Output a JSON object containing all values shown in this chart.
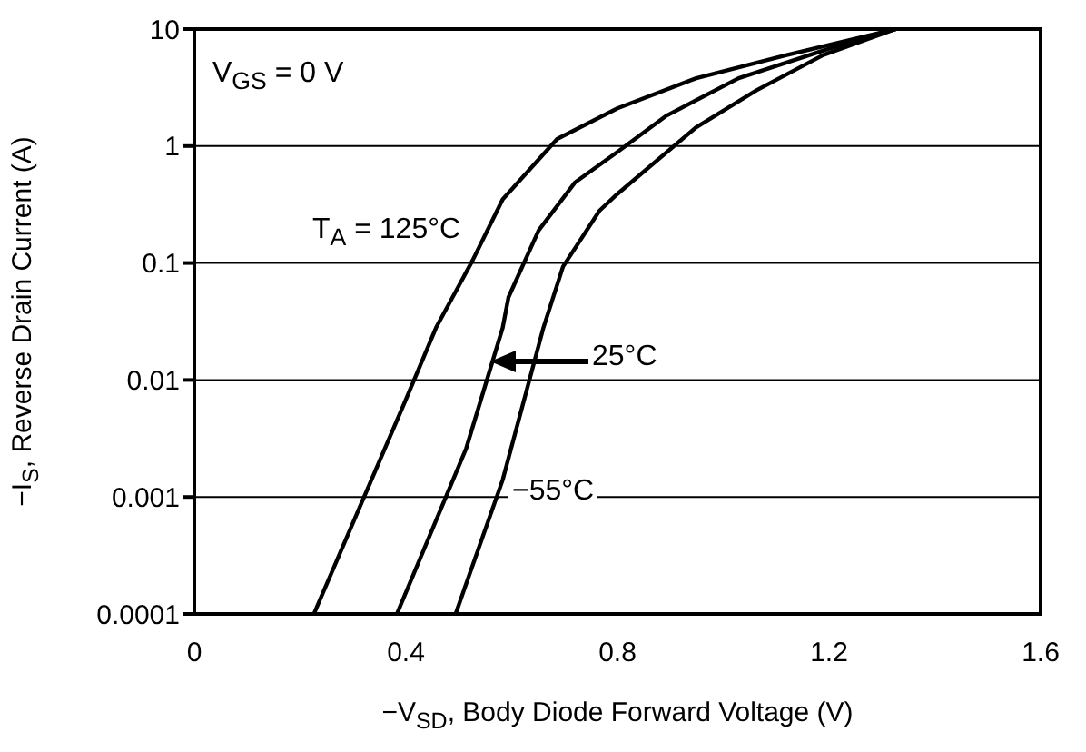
{
  "chart_data": {
    "type": "line",
    "xlabel": "−V$_{SD}$, Body Diode Forward Voltage (V)",
    "ylabel": "−I$_{S}$, Reverse Drain Current (A)",
    "log": "y",
    "grid": true,
    "line_style": "solid",
    "marker": "none",
    "xlim": [
      0,
      1.6
    ],
    "xticks": [
      0,
      0.4,
      0.8,
      1.2,
      1.6
    ],
    "ylim": [
      0.0001,
      10
    ],
    "yticks": [
      0.0001,
      0.001,
      0.01,
      0.1,
      1,
      10
    ],
    "annotations": [
      "V$_{GS}$ = 0 V"
    ],
    "series": [
      {
        "name": "T$_{A}$ = 125°C",
        "color": "#000000",
        "x": [
          0.226,
          0.4,
          0.457,
          0.526,
          0.583,
          0.686,
          0.8,
          0.949,
          1.12,
          1.326
        ],
        "values": [
          0.0001,
          0.0068,
          0.028,
          0.105,
          0.35,
          1.15,
          2.1,
          3.8,
          6,
          10
        ]
      },
      {
        "name": "25°C",
        "color": "#000000",
        "x": [
          0.383,
          0.514,
          0.583,
          0.594,
          0.651,
          0.72,
          0.8,
          0.891,
          1.029,
          1.2,
          1.326
        ],
        "values": [
          0.0001,
          0.0026,
          0.028,
          0.051,
          0.19,
          0.49,
          0.89,
          1.8,
          3.8,
          6.8,
          10
        ]
      },
      {
        "name": "−55°C",
        "color": "#000000",
        "x": [
          0.494,
          0.583,
          0.66,
          0.697,
          0.766,
          0.8,
          0.949,
          1.063,
          1.189,
          1.326
        ],
        "values": [
          0.0001,
          0.0014,
          0.028,
          0.093,
          0.28,
          0.39,
          1.45,
          3,
          6,
          10
        ]
      }
    ]
  }
}
